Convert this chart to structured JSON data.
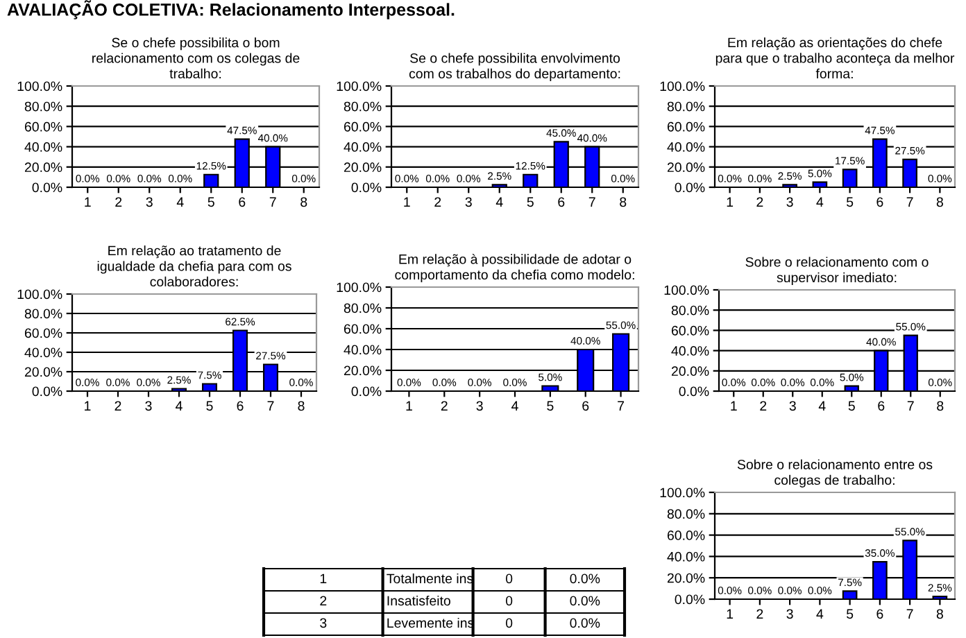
{
  "chart_data": [
    {
      "type": "other",
      "title": "AVALIAÇÃO COLETIVA: Relacionamento Interpessoal."
    },
    {
      "type": "bar",
      "title": "Se o chefe possibilita o bom\nrelacionamento com os colegas de\ntrabalho:",
      "categories": [
        "1",
        "2",
        "3",
        "4",
        "5",
        "6",
        "7",
        "8"
      ],
      "values": [
        0,
        0,
        0,
        0,
        12.5,
        47.5,
        40,
        0
      ],
      "value_labels": [
        "0.0%",
        "0.0%",
        "0.0%",
        "0.0%",
        "12.5%",
        "47.5%",
        "40.0%",
        "0.0%"
      ],
      "color": "#0000ff",
      "ylim": [
        0,
        100
      ],
      "yticks": [
        {
          "value": 0,
          "label": "0.0%"
        },
        {
          "value": 20,
          "label": "20.0%"
        },
        {
          "value": 40,
          "label": "40.0%"
        },
        {
          "value": 60,
          "label": "60.0%"
        },
        {
          "value": 80,
          "label": "80.0%"
        },
        {
          "value": 100,
          "label": "100.0%"
        }
      ],
      "grid": "y"
    },
    {
      "type": "bar",
      "title": "Se o chefe possibilita envolvimento\ncom os trabalhos do departamento:",
      "categories": [
        "1",
        "2",
        "3",
        "4",
        "5",
        "6",
        "7",
        "8"
      ],
      "values": [
        0,
        0,
        0,
        2.5,
        12.5,
        45,
        40,
        0
      ],
      "value_labels": [
        "0.0%",
        "0.0%",
        "0.0%",
        "2.5%",
        "12.5%",
        "45.0%",
        "40.0%",
        "0.0%"
      ],
      "color": "#0000ff",
      "ylim": [
        0,
        100
      ],
      "yticks": [
        {
          "value": 0,
          "label": "0.0%"
        },
        {
          "value": 20,
          "label": "20.0%"
        },
        {
          "value": 40,
          "label": "40.0%"
        },
        {
          "value": 60,
          "label": "60.0%"
        },
        {
          "value": 80,
          "label": "80.0%"
        },
        {
          "value": 100,
          "label": "100.0%"
        }
      ],
      "grid": "y"
    },
    {
      "type": "bar",
      "title": "Em relação as orientações do chefe\npara que o trabalho aconteça da melhor\nforma:",
      "categories": [
        "1",
        "2",
        "3",
        "4",
        "5",
        "6",
        "7",
        "8"
      ],
      "values": [
        0,
        0,
        2.5,
        5,
        17.5,
        47.5,
        27.5,
        0
      ],
      "value_labels": [
        "0.0%",
        "0.0%",
        "2.5%",
        "5.0%",
        "17.5%",
        "47.5%",
        "27.5%",
        "0.0%"
      ],
      "color": "#0000ff",
      "ylim": [
        0,
        100
      ],
      "yticks": [
        {
          "value": 0,
          "label": "0.0%"
        },
        {
          "value": 20,
          "label": "20.0%"
        },
        {
          "value": 40,
          "label": "40.0%"
        },
        {
          "value": 60,
          "label": "60.0%"
        },
        {
          "value": 80,
          "label": "80.0%"
        },
        {
          "value": 100,
          "label": "100.0%"
        }
      ],
      "grid": "y"
    },
    {
      "type": "bar",
      "title": "Em relação ao tratamento de\nigualdade da chefia para com os\ncolaboradores:",
      "categories": [
        "1",
        "2",
        "3",
        "4",
        "5",
        "6",
        "7",
        "8"
      ],
      "values": [
        0,
        0,
        0,
        2.5,
        7.5,
        62.5,
        27.5,
        0
      ],
      "value_labels": [
        "0.0%",
        "0.0%",
        "0.0%",
        "2.5%",
        "7.5%",
        "62.5%",
        "27.5%",
        "0.0%"
      ],
      "color": "#0000ff",
      "ylim": [
        0,
        100
      ],
      "yticks": [
        {
          "value": 0,
          "label": "0.0%"
        },
        {
          "value": 20,
          "label": "20.0%"
        },
        {
          "value": 40,
          "label": "40.0%"
        },
        {
          "value": 60,
          "label": "60.0%"
        },
        {
          "value": 80,
          "label": "80.0%"
        },
        {
          "value": 100,
          "label": "100.0%"
        }
      ],
      "grid": "y"
    },
    {
      "type": "bar",
      "title": "Em relação à possibilidade de adotar o\ncomportamento da chefia como modelo:",
      "categories": [
        "1",
        "2",
        "3",
        "4",
        "5",
        "6",
        "7"
      ],
      "values": [
        0,
        0,
        0,
        0,
        5,
        40,
        55
      ],
      "value_labels": [
        "0.0%",
        "0.0%",
        "0.0%",
        "0.0%",
        "5.0%",
        "40.0%",
        "55.0%"
      ],
      "color": "#0000ff",
      "ylim": [
        0,
        100
      ],
      "yticks": [
        {
          "value": 0,
          "label": "0.0%"
        },
        {
          "value": 20,
          "label": "20.0%"
        },
        {
          "value": 40,
          "label": "40.0%"
        },
        {
          "value": 60,
          "label": "60.0%"
        },
        {
          "value": 80,
          "label": "80.0%"
        },
        {
          "value": 100,
          "label": "100.0%"
        }
      ],
      "grid": "y"
    },
    {
      "type": "bar",
      "title": "Sobre o relacionamento com o\nsupervisor imediato:",
      "categories": [
        "1",
        "2",
        "3",
        "4",
        "5",
        "6",
        "7",
        "8"
      ],
      "values": [
        0,
        0,
        0,
        0,
        5,
        40,
        55,
        0
      ],
      "value_labels": [
        "0.0%",
        "0.0%",
        "0.0%",
        "0.0%",
        "5.0%",
        "40.0%",
        "55.0%",
        "0.0%"
      ],
      "color": "#0000ff",
      "ylim": [
        0,
        100
      ],
      "yticks": [
        {
          "value": 0,
          "label": "0.0%"
        },
        {
          "value": 20,
          "label": "20.0%"
        },
        {
          "value": 40,
          "label": "40.0%"
        },
        {
          "value": 60,
          "label": "60.0%"
        },
        {
          "value": 80,
          "label": "80.0%"
        },
        {
          "value": 100,
          "label": "100.0%"
        }
      ],
      "grid": "y"
    },
    {
      "type": "bar",
      "title": "Sobre o relacionamento entre os\ncolegas de trabalho:",
      "categories": [
        "1",
        "2",
        "3",
        "4",
        "5",
        "6",
        "7",
        "8"
      ],
      "values": [
        0,
        0,
        0,
        0,
        7.5,
        35,
        55,
        2.5
      ],
      "value_labels": [
        "0.0%",
        "0.0%",
        "0.0%",
        "0.0%",
        "7.5%",
        "35.0%",
        "55.0%",
        "2.5%"
      ],
      "color": "#0000ff",
      "ylim": [
        0,
        100
      ],
      "yticks": [
        {
          "value": 0,
          "label": "0.0%"
        },
        {
          "value": 20,
          "label": "20.0%"
        },
        {
          "value": 40,
          "label": "40.0%"
        },
        {
          "value": 60,
          "label": "60.0%"
        },
        {
          "value": 80,
          "label": "80.0%"
        },
        {
          "value": 100,
          "label": "100.0%"
        }
      ],
      "grid": "y"
    },
    {
      "type": "other",
      "annotations": [
        "1",
        "Totalmente ins",
        "0",
        "0.0%",
        "2",
        "Insatisfeito",
        "0",
        "0.0%",
        "3",
        "Levemente ins",
        "0",
        "0.0%"
      ]
    }
  ]
}
